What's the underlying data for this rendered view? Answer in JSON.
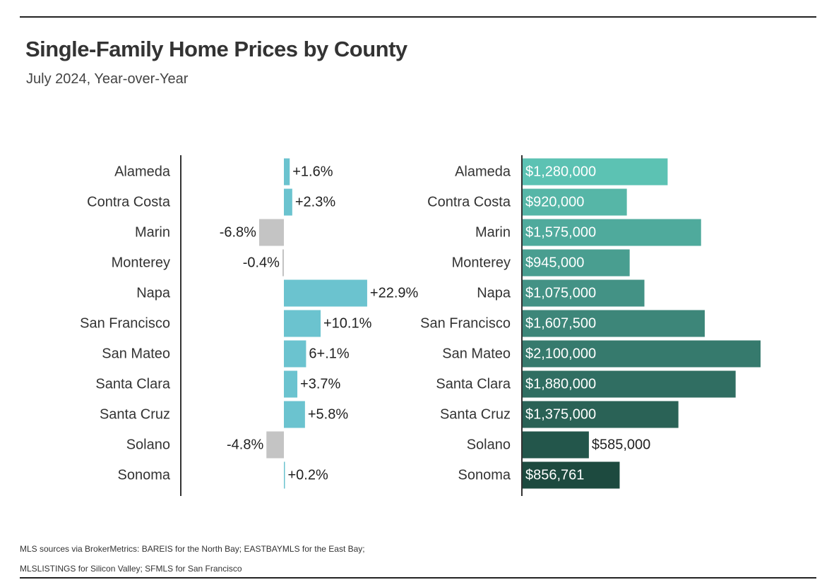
{
  "title": "Single-Family Home Prices by County",
  "subtitle": "July 2024, Year-over-Year",
  "source": "MLS sources via BrokerMetrics: BAREIS for the North Bay; EASTBAYMLS for the East Bay; MLSLISTINGS for Silicon Valley; SFMLS for San Francisco",
  "colors": {
    "positive": "#6bc3cf",
    "negative": "#c4c4c4",
    "price_light": "#5cc2b3",
    "price_dark": "#1d4a3f"
  },
  "chart_data": [
    {
      "type": "bar",
      "orientation": "horizontal",
      "categories": [
        "Alameda",
        "Contra Costa",
        "Marin",
        "Monterey",
        "Napa",
        "San Francisco",
        "San Mateo",
        "Santa Clara",
        "Santa Cruz",
        "Solano",
        "Sonoma"
      ],
      "values": [
        1.6,
        2.3,
        -6.8,
        -0.4,
        22.9,
        10.1,
        6.1,
        3.7,
        5.8,
        -4.8,
        0.2
      ],
      "value_labels": [
        "+1.6%",
        "+2.3%",
        "-6.8%",
        "-0.4%",
        "+22.9%",
        "+10.1%",
        "6+.1%",
        "+3.7%",
        "+5.8%",
        "-4.8%",
        "+0.2%"
      ],
      "xlim": [
        -31,
        25
      ],
      "grid": false
    },
    {
      "type": "bar",
      "orientation": "horizontal",
      "categories": [
        "Alameda",
        "Contra Costa",
        "Marin",
        "Monterey",
        "Napa",
        "San Francisco",
        "San Mateo",
        "Santa Clara",
        "Santa Cruz",
        "Solano",
        "Sonoma"
      ],
      "values": [
        1280000,
        920000,
        1575000,
        945000,
        1075000,
        1607500,
        2100000,
        1880000,
        1375000,
        585000,
        856761
      ],
      "value_labels": [
        "$1,280,000",
        "$920,000",
        "$1,575,000",
        "$945,000",
        "$1,075,000",
        "$1,607,500",
        "$2,100,000",
        "$1,880,000",
        "$1,375,000",
        "$585,000",
        "$856,761"
      ],
      "xlim": [
        0,
        2100000
      ],
      "grid": false
    }
  ]
}
